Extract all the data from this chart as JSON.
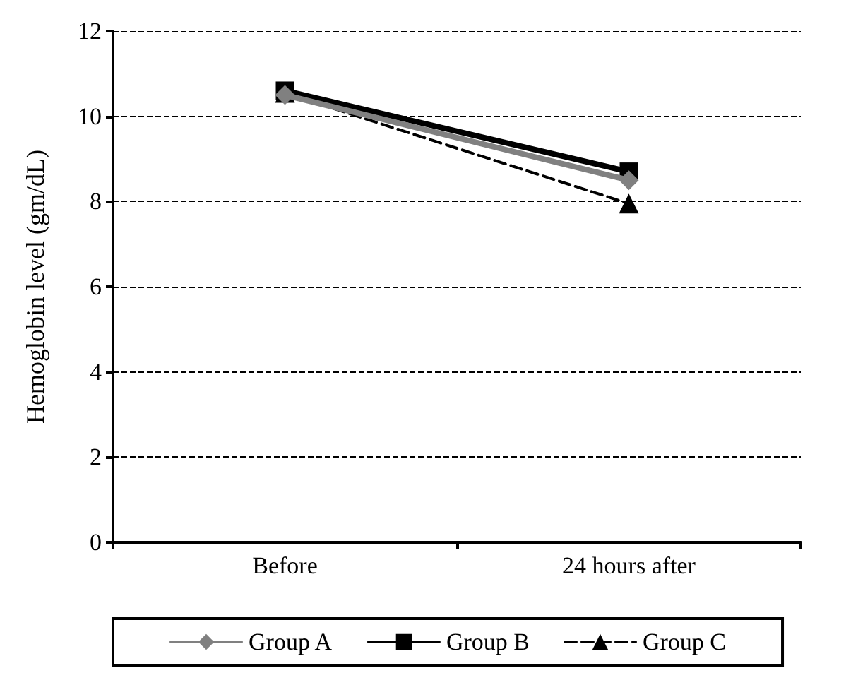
{
  "chart_data": {
    "type": "line",
    "ylabel": "Hemoglobin level (gm/dL)",
    "categories": [
      "Before",
      "24 hours after"
    ],
    "series": [
      {
        "name": "Group A",
        "color": "#808080",
        "values": [
          10.5,
          8.5
        ],
        "marker": "diamond",
        "line_style": "solid"
      },
      {
        "name": "Group B",
        "color": "#000000",
        "values": [
          10.6,
          8.7
        ],
        "marker": "square",
        "line_style": "solid"
      },
      {
        "name": "Group C",
        "color": "#000000",
        "values": [
          10.55,
          7.95
        ],
        "marker": "triangle",
        "line_style": "dashed"
      }
    ],
    "ylim": [
      0,
      12
    ],
    "yticks": [
      0,
      2,
      4,
      6,
      8,
      10,
      12
    ],
    "grid": "y",
    "legend": "bottom"
  }
}
